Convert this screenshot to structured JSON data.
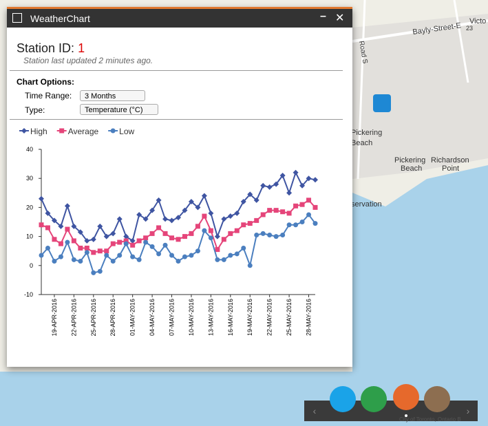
{
  "window": {
    "title": "WeatherChart",
    "station_label": "Station ID:",
    "station_id": "1",
    "updated": "Station last updated 2 minutes ago.",
    "options_title": "Chart Options:",
    "time_range_label": "Time Range:",
    "time_range_value": "3 Months",
    "type_label": "Type:",
    "type_value": "Temperature (°C)"
  },
  "map": {
    "labels": [
      "Bayly-Street-E",
      "Pickering",
      "Beach",
      "Pickering",
      "Beach",
      "Richardson",
      "Point",
      "servation",
      "23",
      "Road S",
      "Victo"
    ],
    "attribution": "City of Toronto, Ontario B"
  },
  "chart_data": {
    "type": "line",
    "categories": [
      null,
      null,
      "19-APR-2016",
      null,
      null,
      "22-APR-2016",
      null,
      null,
      "25-APR-2016",
      null,
      null,
      "28-APR-2016",
      null,
      null,
      "01-MAY-2016",
      null,
      null,
      "04-MAY-2016",
      null,
      null,
      "07-MAY-2016",
      null,
      null,
      "10-MAY-2016",
      null,
      null,
      "13-MAY-2016",
      null,
      null,
      "16-MAY-2016",
      null,
      null,
      "19-MAY-2016",
      null,
      null,
      "22-MAY-2016",
      null,
      null,
      "25-MAY-2016",
      null,
      null,
      "28-MAY-2016",
      null
    ],
    "series": [
      {
        "name": "High",
        "color": "#3f55a2",
        "marker": "diamond",
        "values": [
          23,
          18,
          15.5,
          13.5,
          20.5,
          13.5,
          11.5,
          8.5,
          9,
          13.5,
          10,
          11,
          16,
          10,
          8.5,
          17.5,
          16,
          19,
          22.5,
          16,
          15.5,
          16.5,
          19,
          22,
          20,
          24,
          18,
          10,
          16,
          17,
          18,
          22,
          24.5,
          22.5,
          27.5,
          27,
          28,
          31,
          25,
          32,
          27.5,
          30,
          29.5
        ]
      },
      {
        "name": "Average",
        "color": "#e5457a",
        "marker": "square",
        "values": [
          14,
          13,
          9,
          7.5,
          12.5,
          8.5,
          6,
          6,
          4.5,
          5,
          5,
          7.5,
          8,
          8.5,
          7,
          8.5,
          9.5,
          11,
          13,
          11,
          9.5,
          9,
          10,
          11,
          13.5,
          17,
          12,
          5.5,
          9,
          11,
          12,
          14,
          14.5,
          15.5,
          17.5,
          19,
          19,
          18.5,
          18,
          20.5,
          21,
          22.5,
          20
        ]
      },
      {
        "name": "Low",
        "color": "#4b7fbf",
        "marker": "circle",
        "values": [
          3.5,
          6,
          1.5,
          3,
          8,
          2,
          1.5,
          4.5,
          -2.5,
          -2,
          3.5,
          1.5,
          3.5,
          7.5,
          3,
          2,
          8,
          6.5,
          4,
          7,
          3.5,
          1.5,
          3,
          3.5,
          5,
          12,
          9.5,
          2,
          2,
          3.5,
          4,
          6,
          0,
          10.5,
          11,
          10.5,
          10,
          10.5,
          14,
          14,
          15,
          17.5,
          14.5
        ]
      }
    ],
    "ylim": [
      -10,
      40
    ],
    "yticks": [
      -10,
      0,
      10,
      20,
      30,
      40
    ]
  }
}
